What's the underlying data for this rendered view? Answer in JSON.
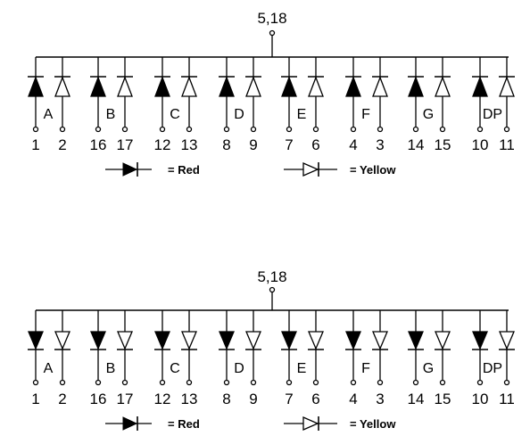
{
  "diagrams": [
    {
      "common_label": "5,18",
      "diode_orientation": "up",
      "segments": [
        {
          "label": "A",
          "red_pin": "1",
          "yellow_pin": "2"
        },
        {
          "label": "B",
          "red_pin": "16",
          "yellow_pin": "17"
        },
        {
          "label": "C",
          "red_pin": "12",
          "yellow_pin": "13"
        },
        {
          "label": "D",
          "red_pin": "8",
          "yellow_pin": "9"
        },
        {
          "label": "E",
          "red_pin": "7",
          "yellow_pin": "6"
        },
        {
          "label": "F",
          "red_pin": "4",
          "yellow_pin": "3"
        },
        {
          "label": "G",
          "red_pin": "14",
          "yellow_pin": "15"
        },
        {
          "label": "DP",
          "red_pin": "10",
          "yellow_pin": "11"
        }
      ],
      "legend": {
        "red_label": "= Red",
        "yellow_label": "= Yellow"
      }
    },
    {
      "common_label": "5,18",
      "diode_orientation": "down",
      "segments": [
        {
          "label": "A",
          "red_pin": "1",
          "yellow_pin": "2"
        },
        {
          "label": "B",
          "red_pin": "16",
          "yellow_pin": "17"
        },
        {
          "label": "C",
          "red_pin": "12",
          "yellow_pin": "13"
        },
        {
          "label": "D",
          "red_pin": "8",
          "yellow_pin": "9"
        },
        {
          "label": "E",
          "red_pin": "7",
          "yellow_pin": "6"
        },
        {
          "label": "F",
          "red_pin": "4",
          "yellow_pin": "3"
        },
        {
          "label": "G",
          "red_pin": "14",
          "yellow_pin": "15"
        },
        {
          "label": "DP",
          "red_pin": "10",
          "yellow_pin": "11"
        }
      ],
      "legend": {
        "red_label": "= Red",
        "yellow_label": "= Yellow"
      }
    }
  ]
}
